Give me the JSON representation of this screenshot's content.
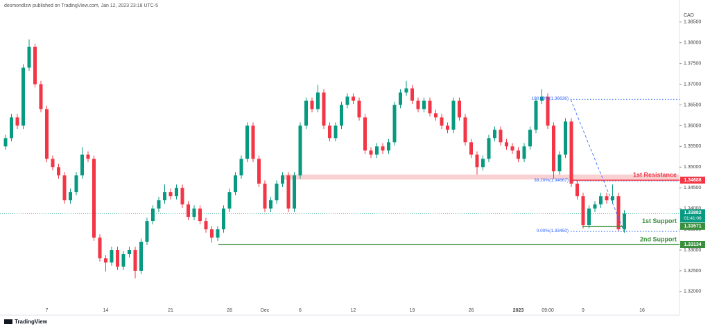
{
  "chart_data": {
    "type": "candlestick",
    "header": "desmondlzw published on TradingView.com, Jan 12, 2023 23:18 UTC-5",
    "currency": "CAD",
    "footer": "TradingView",
    "up_color": "#089981",
    "down_color": "#f23645",
    "ylim": [
      1.3143,
      1.3878
    ],
    "yticks": [
      {
        "value": 1.32,
        "label": "1.32000"
      },
      {
        "value": 1.325,
        "label": "1.32500"
      },
      {
        "value": 1.33,
        "label": "1.33000"
      },
      {
        "value": 1.335,
        "label": "1.33500"
      },
      {
        "value": 1.34,
        "label": "1.34000"
      },
      {
        "value": 1.345,
        "label": "1.34500"
      },
      {
        "value": 1.35,
        "label": "1.35000"
      },
      {
        "value": 1.355,
        "label": "1.35500"
      },
      {
        "value": 1.36,
        "label": "1.36000"
      },
      {
        "value": 1.365,
        "label": "1.36500"
      },
      {
        "value": 1.37,
        "label": "1.37000"
      },
      {
        "value": 1.375,
        "label": "1.37500"
      },
      {
        "value": 1.38,
        "label": "1.38000"
      },
      {
        "value": 1.385,
        "label": "1.38500"
      }
    ],
    "categories": [
      null,
      null,
      null,
      null,
      null,
      null,
      null,
      "7",
      null,
      null,
      null,
      null,
      null,
      null,
      null,
      null,
      null,
      "14",
      null,
      null,
      null,
      null,
      null,
      null,
      null,
      null,
      null,
      null,
      "21",
      null,
      null,
      null,
      null,
      null,
      null,
      null,
      null,
      null,
      "28",
      null,
      null,
      null,
      null,
      null,
      "Dec",
      null,
      null,
      null,
      null,
      null,
      "6",
      null,
      null,
      null,
      null,
      null,
      null,
      null,
      null,
      "12",
      null,
      null,
      null,
      null,
      null,
      null,
      null,
      null,
      null,
      "19",
      null,
      null,
      null,
      null,
      null,
      null,
      null,
      null,
      null,
      "26",
      null,
      null,
      null,
      null,
      null,
      null,
      null,
      "2023",
      null,
      null,
      null,
      null,
      "09:00",
      null,
      null,
      null,
      null,
      null,
      "9",
      null,
      null,
      null,
      null,
      null,
      null,
      null,
      null,
      null,
      "16"
    ],
    "open": [
      1.355,
      1.357,
      1.362,
      1.36,
      1.374,
      1.379,
      1.37,
      1.364,
      1.352,
      1.35,
      1.348,
      1.342,
      1.344,
      1.348,
      1.353,
      1.352,
      1.333,
      1.328,
      1.327,
      1.33,
      1.326,
      1.329,
      1.33,
      1.325,
      1.332,
      1.337,
      1.34,
      1.342,
      1.344,
      1.343,
      1.345,
      1.341,
      1.338,
      1.34,
      1.337,
      1.335,
      1.333,
      1.335,
      1.34,
      1.344,
      1.348,
      1.352,
      1.36,
      1.352,
      1.346,
      1.34,
      1.342,
      1.346,
      1.348,
      1.34,
      1.348,
      1.36,
      1.366,
      1.364,
      1.368,
      1.36,
      1.357,
      1.36,
      1.365,
      1.367,
      1.366,
      1.362,
      1.354,
      1.353,
      1.355,
      1.354,
      1.356,
      1.365,
      1.368,
      1.369,
      1.366,
      1.364,
      1.366,
      1.363,
      1.362,
      1.36,
      1.359,
      1.366,
      1.362,
      1.356,
      1.353,
      1.35,
      1.352,
      1.357,
      1.359,
      1.356,
      1.355,
      1.354,
      1.352,
      1.355,
      1.359,
      1.366,
      1.367,
      1.36,
      1.349,
      1.353,
      1.361,
      1.346,
      1.343,
      1.336,
      1.34,
      1.341,
      1.343,
      1.342,
      1.343,
      1.335,
      null,
      null,
      null
    ],
    "high": [
      1.3578,
      1.3628,
      1.3628,
      1.3748,
      1.3808,
      1.3798,
      1.3708,
      1.3648,
      1.3528,
      1.3508,
      1.3488,
      1.3448,
      1.3488,
      1.3548,
      1.3538,
      1.3528,
      1.3338,
      1.3288,
      1.3308,
      1.3308,
      1.3298,
      1.3308,
      1.3308,
      1.3328,
      1.3378,
      1.3408,
      1.3428,
      1.3458,
      1.3448,
      1.3458,
      1.3458,
      1.3418,
      1.3408,
      1.3408,
      1.3378,
      1.3358,
      1.3358,
      1.3408,
      1.3448,
      1.3488,
      1.3528,
      1.3608,
      1.3608,
      1.3528,
      1.3468,
      1.3428,
      1.3468,
      1.3488,
      1.3488,
      1.3488,
      1.3608,
      1.3668,
      1.3668,
      1.3698,
      1.3688,
      1.3608,
      1.3608,
      1.3658,
      1.3678,
      1.3678,
      1.3668,
      1.3628,
      1.3548,
      1.3558,
      1.3558,
      1.3568,
      1.3658,
      1.3688,
      1.3708,
      1.3698,
      1.3668,
      1.3668,
      1.3668,
      1.3638,
      1.3628,
      1.3608,
      1.3668,
      1.3668,
      1.3628,
      1.3568,
      1.3538,
      1.3528,
      1.3578,
      1.3598,
      1.3598,
      1.3568,
      1.3558,
      1.3548,
      1.3558,
      1.3598,
      1.3668,
      1.3688,
      1.3678,
      1.3608,
      1.3538,
      1.3618,
      1.3618,
      1.3468,
      1.3438,
      1.3408,
      1.3418,
      1.3438,
      1.3438,
      1.3458,
      1.3438,
      1.3396,
      null,
      null,
      null
    ],
    "low": [
      1.3542,
      1.3562,
      1.3592,
      1.3592,
      1.3732,
      1.3692,
      1.3632,
      1.3512,
      1.3492,
      1.3472,
      1.3412,
      1.3412,
      1.3432,
      1.3472,
      1.3512,
      1.3322,
      1.3272,
      1.3248,
      1.3262,
      1.3252,
      1.3252,
      1.3282,
      1.3232,
      1.3242,
      1.3312,
      1.3362,
      1.3392,
      1.3412,
      1.3422,
      1.3422,
      1.3402,
      1.3372,
      1.3372,
      1.3362,
      1.3342,
      1.3318,
      1.3322,
      1.3342,
      1.3392,
      1.3432,
      1.3472,
      1.3512,
      1.3512,
      1.3452,
      1.3392,
      1.3392,
      1.3412,
      1.3452,
      1.3392,
      1.3392,
      1.3472,
      1.3592,
      1.3632,
      1.3632,
      1.3592,
      1.3562,
      1.3562,
      1.3592,
      1.3642,
      1.3652,
      1.3612,
      1.3532,
      1.3522,
      1.3522,
      1.3532,
      1.3532,
      1.3552,
      1.3642,
      1.3672,
      1.3652,
      1.3632,
      1.3632,
      1.3622,
      1.3612,
      1.3592,
      1.3582,
      1.3582,
      1.3612,
      1.3552,
      1.3522,
      1.3482,
      1.3492,
      1.3512,
      1.3562,
      1.3552,
      1.3542,
      1.3532,
      1.3512,
      1.3512,
      1.3542,
      1.3582,
      1.3652,
      1.3592,
      1.3472,
      1.3482,
      1.3522,
      1.3452,
      1.3422,
      1.3352,
      1.3352,
      1.3392,
      1.3402,
      1.3412,
      1.3412,
      1.3345,
      1.3342,
      null,
      null,
      null
    ],
    "close": [
      1.357,
      1.362,
      1.36,
      1.374,
      1.379,
      1.37,
      1.364,
      1.352,
      1.35,
      1.348,
      1.342,
      1.344,
      1.348,
      1.353,
      1.352,
      1.333,
      1.328,
      1.327,
      1.33,
      1.326,
      1.329,
      1.33,
      1.325,
      1.332,
      1.337,
      1.34,
      1.342,
      1.344,
      1.343,
      1.345,
      1.341,
      1.338,
      1.34,
      1.337,
      1.335,
      1.333,
      1.335,
      1.34,
      1.344,
      1.348,
      1.352,
      1.36,
      1.352,
      1.346,
      1.34,
      1.342,
      1.346,
      1.348,
      1.34,
      1.348,
      1.36,
      1.366,
      1.364,
      1.368,
      1.36,
      1.357,
      1.36,
      1.365,
      1.367,
      1.366,
      1.362,
      1.354,
      1.353,
      1.355,
      1.354,
      1.356,
      1.365,
      1.368,
      1.369,
      1.366,
      1.364,
      1.366,
      1.363,
      1.362,
      1.36,
      1.359,
      1.366,
      1.362,
      1.356,
      1.353,
      1.35,
      1.352,
      1.357,
      1.359,
      1.356,
      1.355,
      1.354,
      1.352,
      1.355,
      1.359,
      1.366,
      1.367,
      1.36,
      1.349,
      1.353,
      1.361,
      1.346,
      1.343,
      1.336,
      1.34,
      1.341,
      1.343,
      1.342,
      1.343,
      1.335,
      1.3388,
      null,
      null,
      null
    ],
    "last_price": {
      "value": 1.33882,
      "countdown": "01:41:06",
      "color": "#089981"
    },
    "zone": {
      "top": 1.3482,
      "bottom": 1.347,
      "color": "#f7c5c8"
    },
    "levels": [
      {
        "name": "1st Resistance",
        "value": 1.34686,
        "color": "#f23645"
      },
      {
        "name": "1st Support",
        "value": 1.33571,
        "color": "#388e3c"
      },
      {
        "name": "2nd Support",
        "value": 1.33134,
        "color": "#388e3c"
      }
    ],
    "fib": [
      {
        "label": "100.00%(1.36636)",
        "value": 1.36636
      },
      {
        "label": "38.20%(1.34667)",
        "value": 1.34667
      },
      {
        "label": "0.00%(1.33450)",
        "value": 1.3345
      }
    ],
    "fib_color": "#2962ff"
  }
}
